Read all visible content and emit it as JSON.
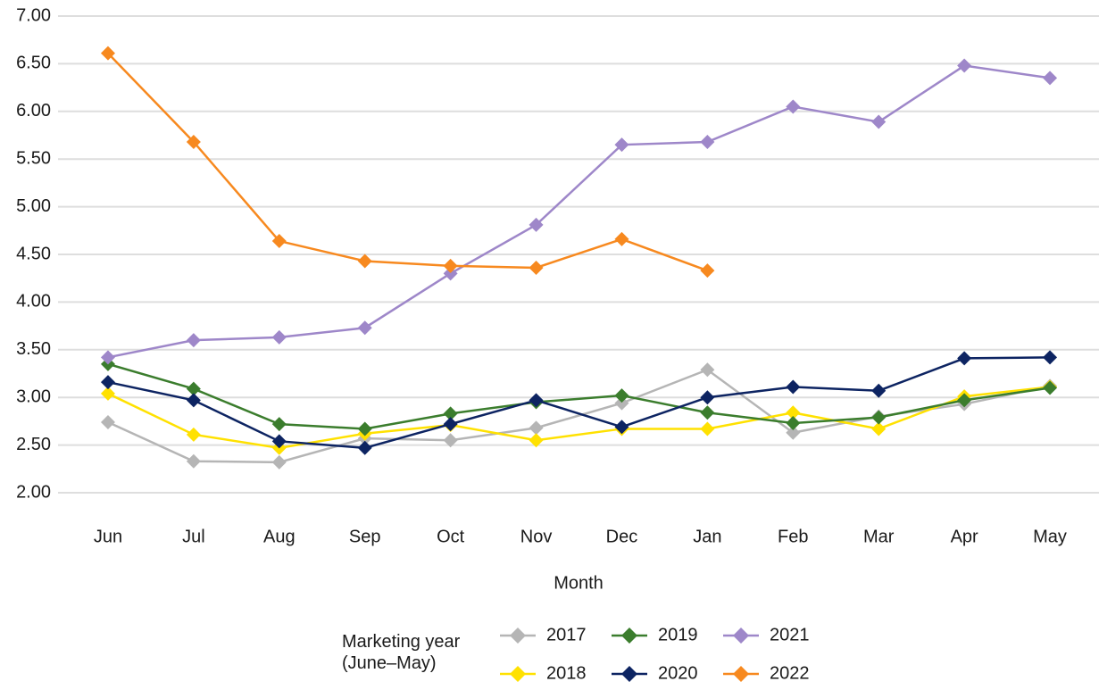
{
  "chart_data": {
    "type": "line",
    "x_label": "Month",
    "legend_title": "Marketing year (June–May)",
    "categories": [
      "Jun",
      "Jul",
      "Aug",
      "Sep",
      "Oct",
      "Nov",
      "Dec",
      "Jan",
      "Feb",
      "Mar",
      "Apr",
      "May"
    ],
    "ylim": [
      2.0,
      7.0
    ],
    "yticks": [
      {
        "value": 2.0,
        "label": "2.00"
      },
      {
        "value": 2.5,
        "label": "2.50"
      },
      {
        "value": 3.0,
        "label": "3.00"
      },
      {
        "value": 3.5,
        "label": "3.50"
      },
      {
        "value": 4.0,
        "label": "4.00"
      },
      {
        "value": 4.5,
        "label": "4.50"
      },
      {
        "value": 5.0,
        "label": "5.00"
      },
      {
        "value": 5.5,
        "label": "5.50"
      },
      {
        "value": 6.0,
        "label": "6.00"
      },
      {
        "value": 6.5,
        "label": "6.50"
      },
      {
        "value": 7.0,
        "label": "7.00"
      }
    ],
    "grid": true,
    "series": [
      {
        "name": "2017",
        "color": "#b5b5b5",
        "values": [
          2.74,
          2.33,
          2.32,
          2.57,
          2.55,
          2.68,
          2.94,
          3.29,
          2.63,
          2.8,
          2.93,
          3.12
        ]
      },
      {
        "name": "2018",
        "color": "#ffe100",
        "values": [
          3.04,
          2.61,
          2.47,
          2.62,
          2.71,
          2.55,
          2.67,
          2.67,
          2.84,
          2.67,
          3.01,
          3.11
        ]
      },
      {
        "name": "2019",
        "color": "#3b7d2d",
        "values": [
          3.35,
          3.09,
          2.72,
          2.67,
          2.83,
          2.95,
          3.02,
          2.84,
          2.73,
          2.79,
          2.97,
          3.1
        ]
      },
      {
        "name": "2020",
        "color": "#0d2462",
        "values": [
          3.16,
          2.97,
          2.54,
          2.47,
          2.72,
          2.97,
          2.69,
          3.0,
          3.11,
          3.07,
          3.41,
          3.42
        ]
      },
      {
        "name": "2021",
        "color": "#9e87c9",
        "values": [
          3.42,
          3.6,
          3.63,
          3.73,
          4.3,
          4.81,
          5.65,
          5.68,
          6.05,
          5.89,
          6.48,
          6.35
        ]
      },
      {
        "name": "2022",
        "color": "#f7891f",
        "values": [
          6.61,
          5.68,
          4.64,
          4.43,
          4.38,
          4.36,
          4.66,
          4.33,
          null,
          null,
          null,
          null
        ]
      }
    ]
  }
}
